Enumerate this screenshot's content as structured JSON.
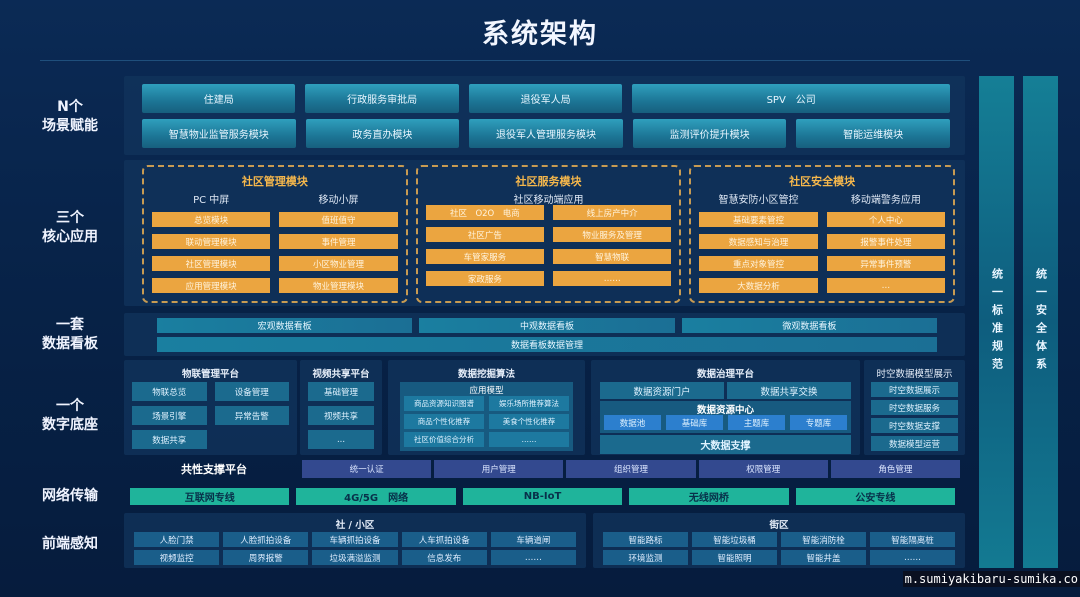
{
  "title": "系统架构",
  "layers": {
    "scenes": "N个\n场景赋能",
    "core": "三个\n核心应用",
    "board": "一套\n数据看板",
    "base": "一个\n数字底座",
    "network": "网络传输",
    "sensing": "前端感知"
  },
  "scenes": {
    "row1": [
      "住建局",
      "行政服务审批局",
      "退役军人局",
      "SPV　公司"
    ],
    "row2": [
      "智慧物业监管服务模块",
      "政务直办模块",
      "退役军人管理服务模块",
      "监测评价提升模块",
      "智能运维模块"
    ]
  },
  "core_modules": [
    {
      "title": "社区管理模块",
      "columns": [
        {
          "heading": "PC 中屏",
          "items": [
            "总览模块",
            "联动管理模块",
            "社区管理模块",
            "应用管理模块"
          ]
        },
        {
          "heading": "移动小屏",
          "items": [
            "值班值守",
            "事件管理",
            "小区物业管理",
            "物业管理模块"
          ]
        }
      ]
    },
    {
      "title": "社区服务模块",
      "heading": "社区移动端应用",
      "columns": [
        {
          "items": [
            "社区　O2O　电商",
            "社区广告",
            "车管家服务",
            "家政服务"
          ]
        },
        {
          "items": [
            "线上房产中介",
            "物业服务及管理",
            "智慧物联",
            "……"
          ]
        }
      ]
    },
    {
      "title": "社区安全模块",
      "columns": [
        {
          "heading": "智慧安防小区管控",
          "items": [
            "基础要素管控",
            "数据感知与治理",
            "重点对象管控",
            "大数据分析"
          ]
        },
        {
          "heading": "移动端警务应用",
          "items": [
            "个人中心",
            "报警事件处理",
            "异常事件预警",
            "…"
          ]
        }
      ]
    }
  ],
  "boards": {
    "items": [
      "宏观数据看板",
      "中观数据看板",
      "微观数据看板"
    ],
    "management": "数据看板数据管理"
  },
  "base": {
    "iot": {
      "title": "物联管理平台",
      "items": [
        "物联总览",
        "设备管理",
        "场景引擎",
        "异常告警",
        "数据共享"
      ]
    },
    "video": {
      "title": "视频共享平台",
      "items": [
        "基础管理",
        "视频共享",
        "..."
      ]
    },
    "mining": {
      "title": "数据挖掘算法",
      "model_title": "应用模型",
      "items": [
        "商品资源知识图谱",
        "娱乐场所推荐算法",
        "商品个性化推荐",
        "美食个性化推荐",
        "社区价值综合分析",
        "……"
      ]
    },
    "governance": {
      "title": "数据治理平台",
      "top": [
        "数据资源门户",
        "数据共享交换"
      ],
      "center_title": "数据资源中心",
      "center_items": [
        "数据池",
        "基础库",
        "主题库",
        "专题库"
      ],
      "bottom": "大数据支撑"
    },
    "spatial": {
      "title": "时空数据模型展示",
      "items": [
        "时空数据展示",
        "时空数据服务",
        "时空数据支撑",
        "数据模型运营"
      ]
    }
  },
  "common_platform": {
    "title": "共性支撑平台",
    "items": [
      "统一认证",
      "用户管理",
      "组织管理",
      "权限管理",
      "角色管理"
    ]
  },
  "network": [
    "互联网专线",
    "4G/5G　网络",
    "NB-IoT",
    "无线网桥",
    "公安专线"
  ],
  "sensing": {
    "community": {
      "title": "社 / 小区",
      "rows": [
        [
          "人脸门禁",
          "人脸抓拍设备",
          "车辆抓拍设备",
          "人车抓拍设备",
          "车辆道闸"
        ],
        [
          "视频监控",
          "周界报警",
          "垃圾满溢监测",
          "信息发布",
          "……"
        ]
      ]
    },
    "street": {
      "title": "街区",
      "rows": [
        [
          "智能路标",
          "智能垃圾桶",
          "智能消防栓",
          "智能隔离桩"
        ],
        [
          "环境监测",
          "智能照明",
          "智能井盖",
          "……"
        ]
      ]
    }
  },
  "side_bars": [
    "统一标准规范",
    "统一安全体系"
  ],
  "watermark": "m.sumiyakibaru-sumika.co",
  "colors": {
    "background": "#072247",
    "scene_button": "#1c7595",
    "core_item": "#eba540",
    "dash_border": "#c89b52",
    "common": "#33498f",
    "network": "#1fb49b",
    "resource_item": "#2c7fce"
  }
}
